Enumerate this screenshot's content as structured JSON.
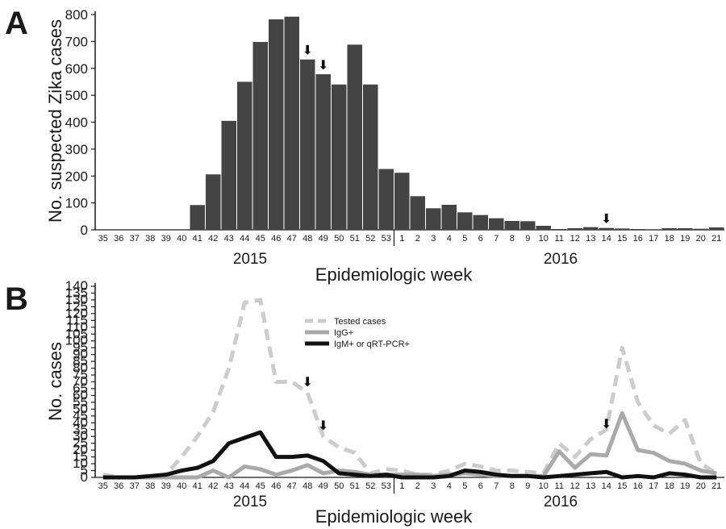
{
  "panel_a_letter": "A",
  "panel_b_letter": "B",
  "years": [
    "2015",
    "2016"
  ],
  "arrow_glyph": "⬇",
  "chart_data": [
    {
      "type": "bar",
      "panel": "A",
      "title": "",
      "xlabel": "Epidemiologic week",
      "ylabel": "No. suspected Zika cases",
      "ylim": [
        0,
        800
      ],
      "yticks": [
        0,
        100,
        200,
        300,
        400,
        500,
        600,
        700,
        800
      ],
      "categories": [
        "35",
        "36",
        "37",
        "38",
        "39",
        "40",
        "41",
        "42",
        "43",
        "44",
        "45",
        "46",
        "47",
        "48",
        "49",
        "50",
        "51",
        "52",
        "53",
        "1",
        "2",
        "3",
        "4",
        "5",
        "6",
        "7",
        "8",
        "9",
        "10",
        "11",
        "12",
        "13",
        "14",
        "15",
        "16",
        "17",
        "18",
        "19",
        "20",
        "21"
      ],
      "values": [
        0,
        0,
        0,
        0,
        0,
        0,
        92,
        206,
        405,
        550,
        698,
        782,
        792,
        633,
        578,
        540,
        688,
        540,
        226,
        212,
        125,
        80,
        93,
        65,
        55,
        43,
        33,
        32,
        15,
        3,
        6,
        10,
        7,
        5,
        3,
        2,
        6,
        6,
        4,
        9
      ],
      "annotations": [
        {
          "type": "arrow-down",
          "category": "48"
        },
        {
          "type": "arrow-down",
          "category": "49"
        },
        {
          "type": "arrow-down",
          "category": "14"
        }
      ],
      "bar_color": "#444444",
      "year_divider_after": "53"
    },
    {
      "type": "line",
      "panel": "B",
      "title": "",
      "xlabel": "Epidemiologic week",
      "ylabel": "No. cases",
      "ylim": [
        0,
        140
      ],
      "yticks": [
        0,
        5,
        10,
        15,
        20,
        25,
        30,
        35,
        40,
        45,
        50,
        55,
        60,
        65,
        70,
        75,
        80,
        85,
        90,
        95,
        100,
        105,
        110,
        115,
        120,
        125,
        130,
        135,
        140
      ],
      "categories": [
        "35",
        "36",
        "37",
        "38",
        "39",
        "40",
        "41",
        "42",
        "43",
        "44",
        "45",
        "46",
        "47",
        "48",
        "49",
        "50",
        "51",
        "52",
        "53",
        "1",
        "2",
        "3",
        "4",
        "5",
        "6",
        "7",
        "8",
        "9",
        "10",
        "11",
        "12",
        "13",
        "14",
        "15",
        "16",
        "17",
        "18",
        "19",
        "20",
        "21"
      ],
      "legend_position": "top-center",
      "series": [
        {
          "name": "Tested cases",
          "style": "dashed",
          "color": "#cccccc",
          "values": [
            2,
            0,
            0,
            0,
            2,
            15,
            30,
            48,
            80,
            128,
            130,
            70,
            70,
            62,
            30,
            22,
            18,
            3,
            6,
            5,
            2,
            2,
            5,
            10,
            8,
            5,
            5,
            4,
            3,
            25,
            15,
            28,
            35,
            95,
            55,
            38,
            32,
            42,
            10,
            3
          ]
        },
        {
          "name": "IgG+",
          "style": "solid",
          "color": "#aaaaaa",
          "values": [
            0,
            0,
            0,
            0,
            0,
            0,
            0,
            5,
            0,
            8,
            6,
            2,
            5,
            9,
            3,
            5,
            4,
            2,
            2,
            2,
            2,
            1,
            2,
            3,
            2,
            1,
            1,
            1,
            1,
            19,
            7,
            17,
            16,
            47,
            20,
            18,
            12,
            10,
            5,
            3
          ]
        },
        {
          "name": "IgM+ or qRT-PCR+",
          "style": "solid",
          "color": "#111111",
          "values": [
            0,
            0,
            0,
            1,
            2,
            5,
            7,
            12,
            25,
            29,
            33,
            15,
            15,
            16,
            12,
            3,
            2,
            1,
            2,
            0,
            0,
            0,
            1,
            5,
            4,
            2,
            1,
            1,
            0,
            1,
            2,
            3,
            4,
            0,
            1,
            0,
            3,
            2,
            0,
            0
          ]
        }
      ],
      "annotations": [
        {
          "type": "arrow-down",
          "category": "48"
        },
        {
          "type": "arrow-down",
          "category": "49"
        },
        {
          "type": "arrow-down",
          "category": "14"
        }
      ],
      "year_divider_after": "53"
    }
  ]
}
